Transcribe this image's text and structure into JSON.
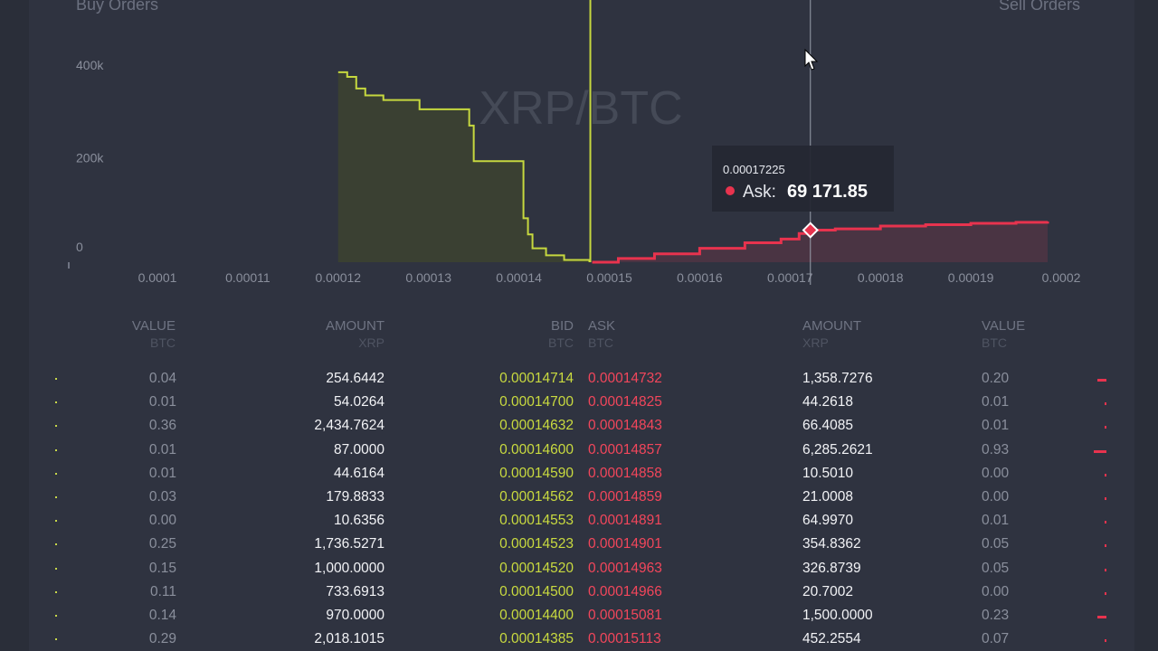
{
  "labels": {
    "buy_orders": "Buy Orders",
    "sell_orders": "Sell Orders"
  },
  "chart_data": {
    "type": "area",
    "watermark": "XRP/BTC",
    "x_ticks": [
      "0.0001",
      "0.00011",
      "0.00012",
      "0.00013",
      "0.00014",
      "0.00015",
      "0.00016",
      "0.00017",
      "0.00018",
      "0.00019",
      "0.0002"
    ],
    "y_ticks": [
      "400k",
      "200k",
      "0"
    ],
    "xlim": [
      0.0001,
      0.0002
    ],
    "ylim": [
      0,
      430000
    ],
    "mid_price": 0.0001479,
    "bids": {
      "color": "#c6d83f",
      "points": [
        [
          0.00012,
          410000
        ],
        [
          0.000121,
          400000
        ],
        [
          0.000122,
          375000
        ],
        [
          0.000123,
          360000
        ],
        [
          0.000125,
          350000
        ],
        [
          0.000129,
          330000
        ],
        [
          0.000134,
          330000
        ],
        [
          0.0001345,
          295000
        ],
        [
          0.000135,
          218000
        ],
        [
          0.00014,
          218000
        ],
        [
          0.0001405,
          95000
        ],
        [
          0.000141,
          60000
        ],
        [
          0.0001415,
          30000
        ],
        [
          0.000143,
          15000
        ],
        [
          0.000145,
          5000
        ],
        [
          0.0001478,
          0
        ]
      ]
    },
    "asks": {
      "color": "#e8334e",
      "points": [
        [
          0.0001481,
          0
        ],
        [
          0.000151,
          8000
        ],
        [
          0.000155,
          18000
        ],
        [
          0.00016,
          30000
        ],
        [
          0.000165,
          42000
        ],
        [
          0.000169,
          50000
        ],
        [
          0.000171,
          62000
        ],
        [
          0.00017225,
          69171.85
        ],
        [
          0.000175,
          72000
        ],
        [
          0.00018,
          78000
        ],
        [
          0.000185,
          81000
        ],
        [
          0.00019,
          84000
        ],
        [
          0.000195,
          86000
        ],
        [
          0.0001985,
          88000
        ]
      ]
    },
    "hover": {
      "price": "0.00017225",
      "label": "Ask:",
      "value": "69 171.85",
      "x": 0.00017225,
      "y": 69171.85
    }
  },
  "table": {
    "headers": {
      "buy_value": "VALUE",
      "buy_value_unit": "BTC",
      "buy_amount": "AMOUNT",
      "buy_amount_unit": "XRP",
      "bid": "BID",
      "bid_unit": "BTC",
      "ask": "ASK",
      "ask_unit": "BTC",
      "sell_amount": "AMOUNT",
      "sell_amount_unit": "XRP",
      "sell_value": "VALUE",
      "sell_value_unit": "BTC"
    },
    "rows": [
      {
        "bvalue": "0.04",
        "bamount": "254.6442",
        "bid": "0.00014714",
        "ask": "0.00014732",
        "aamount": "1,358.7276",
        "avalue": "0.20",
        "bar": 0.5
      },
      {
        "bvalue": "0.01",
        "bamount": "54.0264",
        "bid": "0.00014700",
        "ask": "0.00014825",
        "aamount": "44.2618",
        "avalue": "0.01",
        "bar": 0.05
      },
      {
        "bvalue": "0.36",
        "bamount": "2,434.7624",
        "bid": "0.00014632",
        "ask": "0.00014843",
        "aamount": "66.4085",
        "avalue": "0.01",
        "bar": 0.05
      },
      {
        "bvalue": "0.01",
        "bamount": "87.0000",
        "bid": "0.00014600",
        "ask": "0.00014857",
        "aamount": "6,285.2621",
        "avalue": "0.93",
        "bar": 0.7
      },
      {
        "bvalue": "0.01",
        "bamount": "44.6164",
        "bid": "0.00014590",
        "ask": "0.00014858",
        "aamount": "10.5010",
        "avalue": "0.00",
        "bar": 0.05
      },
      {
        "bvalue": "0.03",
        "bamount": "179.8833",
        "bid": "0.00014562",
        "ask": "0.00014859",
        "aamount": "21.0008",
        "avalue": "0.00",
        "bar": 0.05
      },
      {
        "bvalue": "0.00",
        "bamount": "10.6356",
        "bid": "0.00014553",
        "ask": "0.00014891",
        "aamount": "64.9970",
        "avalue": "0.01",
        "bar": 0.05
      },
      {
        "bvalue": "0.25",
        "bamount": "1,736.5271",
        "bid": "0.00014523",
        "ask": "0.00014901",
        "aamount": "354.8362",
        "avalue": "0.05",
        "bar": 0.05
      },
      {
        "bvalue": "0.15",
        "bamount": "1,000.0000",
        "bid": "0.00014520",
        "ask": "0.00014963",
        "aamount": "326.8739",
        "avalue": "0.05",
        "bar": 0.05
      },
      {
        "bvalue": "0.11",
        "bamount": "733.6913",
        "bid": "0.00014500",
        "ask": "0.00014966",
        "aamount": "20.7002",
        "avalue": "0.00",
        "bar": 0.05
      },
      {
        "bvalue": "0.14",
        "bamount": "970.0000",
        "bid": "0.00014400",
        "ask": "0.00015081",
        "aamount": "1,500.0000",
        "avalue": "0.23",
        "bar": 0.5
      },
      {
        "bvalue": "0.29",
        "bamount": "2,018.1015",
        "bid": "0.00014385",
        "ask": "0.00015113",
        "aamount": "452.2554",
        "avalue": "0.07",
        "bar": 0.05
      }
    ]
  },
  "colors": {
    "bid": "#c9da3f",
    "ask": "#f2465b",
    "bg": "#2f3340"
  }
}
